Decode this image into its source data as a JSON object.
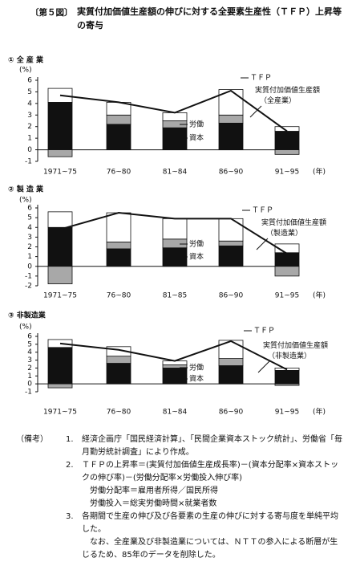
{
  "title_label": "〔第５図〕",
  "title": "実質付加価値生産額の伸びに対する全要素生産性（ＴＦＰ）上昇等の寄与",
  "chart_data": [
    {
      "type": "bar",
      "subtitle": "① 全 産 業",
      "y_label": "(%)",
      "x_label": "(年)",
      "categories": [
        "1971~75",
        "76~80",
        "81~84",
        "86~90",
        "91~95"
      ],
      "ylim": [
        -1,
        6
      ],
      "yticks": [
        -1,
        0,
        1,
        2,
        3,
        4,
        5,
        6
      ],
      "series": [
        {
          "name": "資本",
          "color": "#111111",
          "values": [
            4.1,
            2.2,
            1.9,
            2.3,
            1.6
          ]
        },
        {
          "name": "労働",
          "color": "#a8a8a8",
          "values": [
            -0.6,
            0.8,
            0.6,
            0.7,
            -0.4
          ]
        },
        {
          "name": "ＴＦＰ",
          "color": "#ffffff",
          "values": [
            1.2,
            1.1,
            0.7,
            2.2,
            0.4
          ]
        },
        {
          "name": "実質付加価値生産額（全産業）",
          "type": "line",
          "color": "#111111",
          "values": [
            4.7,
            4.1,
            3.2,
            5.1,
            1.6
          ]
        }
      ]
    },
    {
      "type": "bar",
      "subtitle": "② 製 造 業",
      "y_label": "(%)",
      "x_label": "(年)",
      "categories": [
        "1971~75",
        "76~80",
        "81~85",
        "86~90",
        "91~95"
      ],
      "ylim": [
        -2,
        6
      ],
      "yticks": [
        -2,
        -1,
        0,
        1,
        2,
        3,
        4,
        5,
        6
      ],
      "series": [
        {
          "name": "資本",
          "color": "#111111",
          "values": [
            4.0,
            1.8,
            1.9,
            2.1,
            1.4
          ]
        },
        {
          "name": "労働",
          "color": "#a8a8a8",
          "values": [
            -1.8,
            0.7,
            0.9,
            0.5,
            -1.0
          ]
        },
        {
          "name": "ＴＦＰ",
          "color": "#ffffff",
          "values": [
            1.6,
            3.0,
            2.1,
            2.3,
            0.9
          ]
        },
        {
          "name": "実質付加価値生産額（製造業）",
          "type": "line",
          "color": "#111111",
          "values": [
            3.8,
            5.5,
            4.9,
            4.9,
            1.3
          ]
        }
      ]
    },
    {
      "type": "bar",
      "subtitle": "③ 非製造業",
      "y_label": "(%)",
      "x_label": "(年)",
      "categories": [
        "1971~75",
        "76~80",
        "81~84",
        "86~90",
        "91~95"
      ],
      "ylim": [
        -1,
        6
      ],
      "yticks": [
        -1,
        0,
        1,
        2,
        3,
        4,
        5,
        6
      ],
      "series": [
        {
          "name": "資本",
          "color": "#111111",
          "values": [
            4.6,
            2.6,
            2.0,
            2.3,
            1.7
          ]
        },
        {
          "name": "労働",
          "color": "#a8a8a8",
          "values": [
            -0.5,
            0.9,
            0.4,
            0.9,
            -0.2
          ]
        },
        {
          "name": "ＴＦＰ",
          "color": "#ffffff",
          "values": [
            1.0,
            1.2,
            0.5,
            2.3,
            0.3
          ]
        },
        {
          "name": "実質付加価値生産額（非製造業）",
          "type": "line",
          "color": "#111111",
          "values": [
            5.1,
            4.3,
            2.9,
            5.4,
            1.8
          ]
        }
      ]
    }
  ],
  "notes": {
    "label": "（備考）",
    "items": [
      {
        "number": "1.",
        "lines": [
          "経済企画庁「国民経済計算」、「民間企業資本ストック統計」、労働省「毎月勤労統計調査」により作成。"
        ]
      },
      {
        "number": "2.",
        "lines": [
          "ＴＦＰの上昇率＝(実質付加価値生産成長率)－(資本分配率×資本ストックの伸び率)－(労働分配率×労働投入伸び率)",
          "労働分配率＝雇用者所得／国民所得",
          "労働投入＝総実労働時間×就業者数"
        ]
      },
      {
        "number": "3.",
        "lines": [
          "各期間で生産の伸び及び各要素の生産の伸びに対する寄与度を単純平均した。",
          "なお、全産業及び非製造業については、ＮＴＴの参入による断層が生じるため、85年のデータを削除した。"
        ]
      }
    ]
  }
}
